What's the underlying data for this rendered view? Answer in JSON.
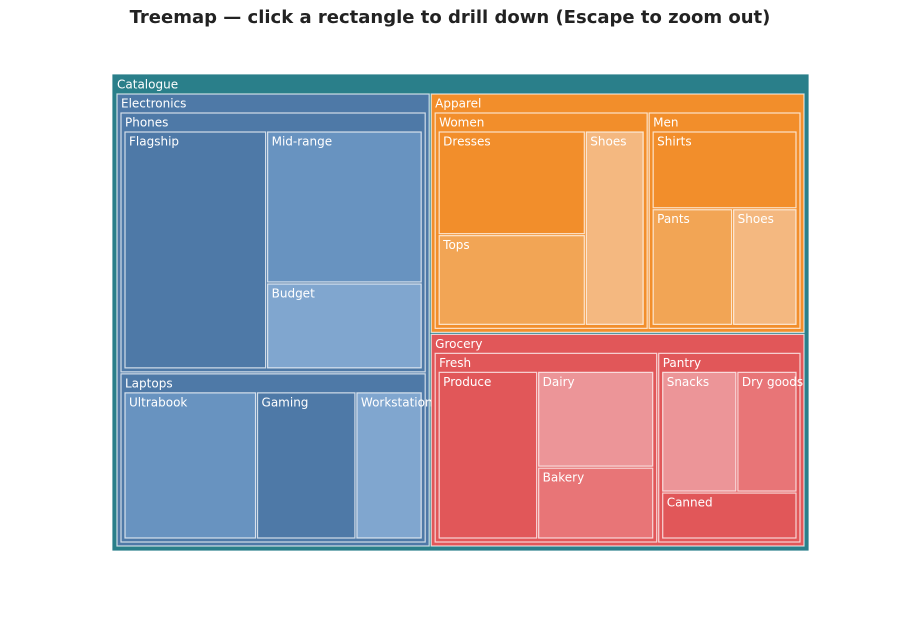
{
  "chart_data": {
    "type": "treemap",
    "title": "Treemap — click a rectangle to drill down (Escape to zoom out)",
    "root": {
      "name": "Catalogue",
      "color": "#2a7f8a",
      "children": [
        {
          "name": "Electronics",
          "color": "#4e79a7",
          "children": [
            {
              "name": "Phones",
              "color": "#4e79a7",
              "children": [
                {
                  "name": "Flagship",
                  "value": 33,
                  "color": "#4e79a7"
                },
                {
                  "name": "Mid-range",
                  "value": 23,
                  "color": "#6893c0"
                },
                {
                  "name": "Budget",
                  "value": 13,
                  "color": "#80a6cf"
                }
              ]
            },
            {
              "name": "Laptops",
              "color": "#4e79a7",
              "children": [
                {
                  "name": "Ultrabook",
                  "value": 20,
                  "color": "#6893c0"
                },
                {
                  "name": "Gaming",
                  "value": 15,
                  "color": "#4e79a7"
                },
                {
                  "name": "Workstation",
                  "value": 10,
                  "color": "#80a6cf"
                }
              ]
            }
          ]
        },
        {
          "name": "Apparel",
          "color": "#f28e2b",
          "children": [
            {
              "name": "Women",
              "color": "#f28e2b",
              "children": [
                {
                  "name": "Dresses",
                  "value": 16,
                  "color": "#f28e2b"
                },
                {
                  "name": "Tops",
                  "value": 14,
                  "color": "#f2a555"
                },
                {
                  "name": "Shoes",
                  "value": 12,
                  "color": "#f4b880"
                }
              ]
            },
            {
              "name": "Men",
              "color": "#f28e2b",
              "children": [
                {
                  "name": "Shirts",
                  "value": 12,
                  "color": "#f28e2b"
                },
                {
                  "name": "Pants",
                  "value": 10,
                  "color": "#f2a555"
                },
                {
                  "name": "Shoes",
                  "value": 8,
                  "color": "#f4b880"
                }
              ]
            }
          ]
        },
        {
          "name": "Grocery",
          "color": "#e15759",
          "children": [
            {
              "name": "Fresh",
              "color": "#e15759",
              "children": [
                {
                  "name": "Produce",
                  "value": 18,
                  "color": "#e15759"
                },
                {
                  "name": "Dairy",
                  "value": 12,
                  "color": "#ec9598"
                },
                {
                  "name": "Bakery",
                  "value": 9,
                  "color": "#e87577"
                }
              ]
            },
            {
              "name": "Pantry",
              "color": "#e15759",
              "children": [
                {
                  "name": "Snacks",
                  "value": 10,
                  "color": "#ec9598"
                },
                {
                  "name": "Dry goods",
                  "value": 8,
                  "color": "#e87577"
                },
                {
                  "name": "Canned",
                  "value": 7,
                  "color": "#e15759"
                }
              ]
            }
          ]
        }
      ]
    }
  }
}
